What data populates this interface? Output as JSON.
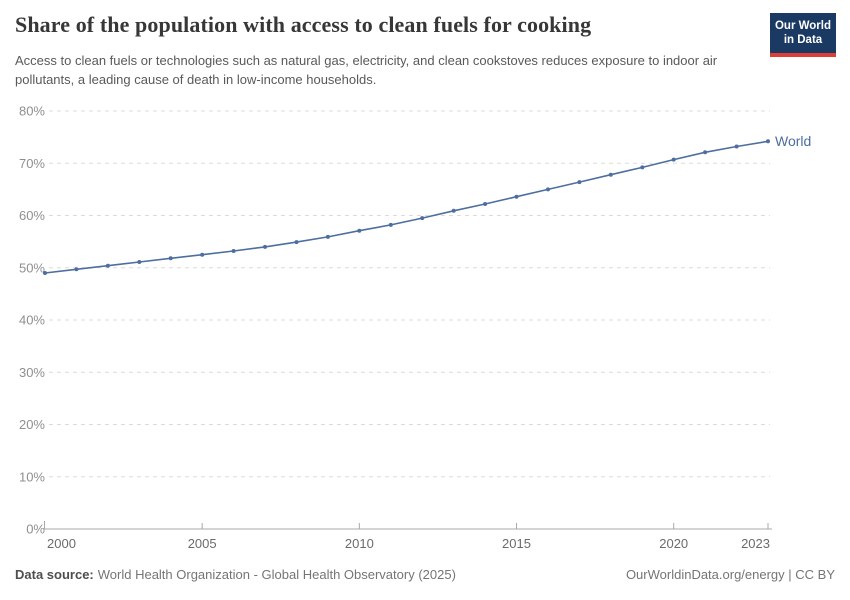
{
  "header": {
    "title": "Share of the population with access to clean fuels for cooking",
    "subtitle": "Access to clean fuels or technologies such as natural gas, electricity, and clean cookstoves reduces exposure to indoor air pollutants, a leading cause of death in low-income households.",
    "logo": {
      "line1": "Our World",
      "line2": "in Data"
    }
  },
  "chart_data": {
    "type": "line",
    "title": "Share of the population with access to clean fuels for cooking",
    "xlabel": "",
    "ylabel": "",
    "xlim": [
      2000,
      2023
    ],
    "ylim": [
      0,
      80
    ],
    "grid": "horizontal-dashed",
    "legend_position": "end-of-line-label",
    "x": [
      2000,
      2001,
      2002,
      2003,
      2004,
      2005,
      2006,
      2007,
      2008,
      2009,
      2010,
      2011,
      2012,
      2013,
      2014,
      2015,
      2016,
      2017,
      2018,
      2019,
      2020,
      2021,
      2022,
      2023
    ],
    "series": [
      {
        "name": "World",
        "color": "#4d6e9f",
        "values": [
          49.0,
          49.7,
          50.4,
          51.1,
          51.8,
          52.5,
          53.2,
          54.0,
          54.9,
          55.9,
          57.1,
          58.2,
          59.5,
          60.9,
          62.2,
          63.6,
          65.0,
          66.4,
          67.8,
          69.2,
          70.7,
          72.1,
          73.2,
          74.2
        ]
      }
    ],
    "x_ticks": [
      {
        "value": 2000,
        "label": "2000"
      },
      {
        "value": 2005,
        "label": "2005"
      },
      {
        "value": 2010,
        "label": "2010"
      },
      {
        "value": 2015,
        "label": "2015"
      },
      {
        "value": 2020,
        "label": "2020"
      },
      {
        "value": 2023,
        "label": "2023"
      }
    ],
    "y_ticks": [
      {
        "value": 0,
        "label": "0%"
      },
      {
        "value": 10,
        "label": "10%"
      },
      {
        "value": 20,
        "label": "20%"
      },
      {
        "value": 30,
        "label": "30%"
      },
      {
        "value": 40,
        "label": "40%"
      },
      {
        "value": 50,
        "label": "50%"
      },
      {
        "value": 60,
        "label": "60%"
      },
      {
        "value": 70,
        "label": "70%"
      },
      {
        "value": 80,
        "label": "80%"
      }
    ]
  },
  "footer": {
    "datasource_label": "Data source:",
    "datasource_text": "World Health Organization - Global Health Observatory (2025)",
    "rights": "OurWorldinData.org/energy | CC BY"
  },
  "colors": {
    "accent_line": "#4d6e9f",
    "logo_bg": "#1a3a63",
    "logo_stripe": "#dc3f38",
    "grid": "#dcdcdc",
    "axis": "#a8a8a8",
    "tick_label": "#8f8f8f",
    "x_label": "#6b6b6b",
    "title": "#373737",
    "subtitle": "#595959",
    "footer": "#757575"
  }
}
